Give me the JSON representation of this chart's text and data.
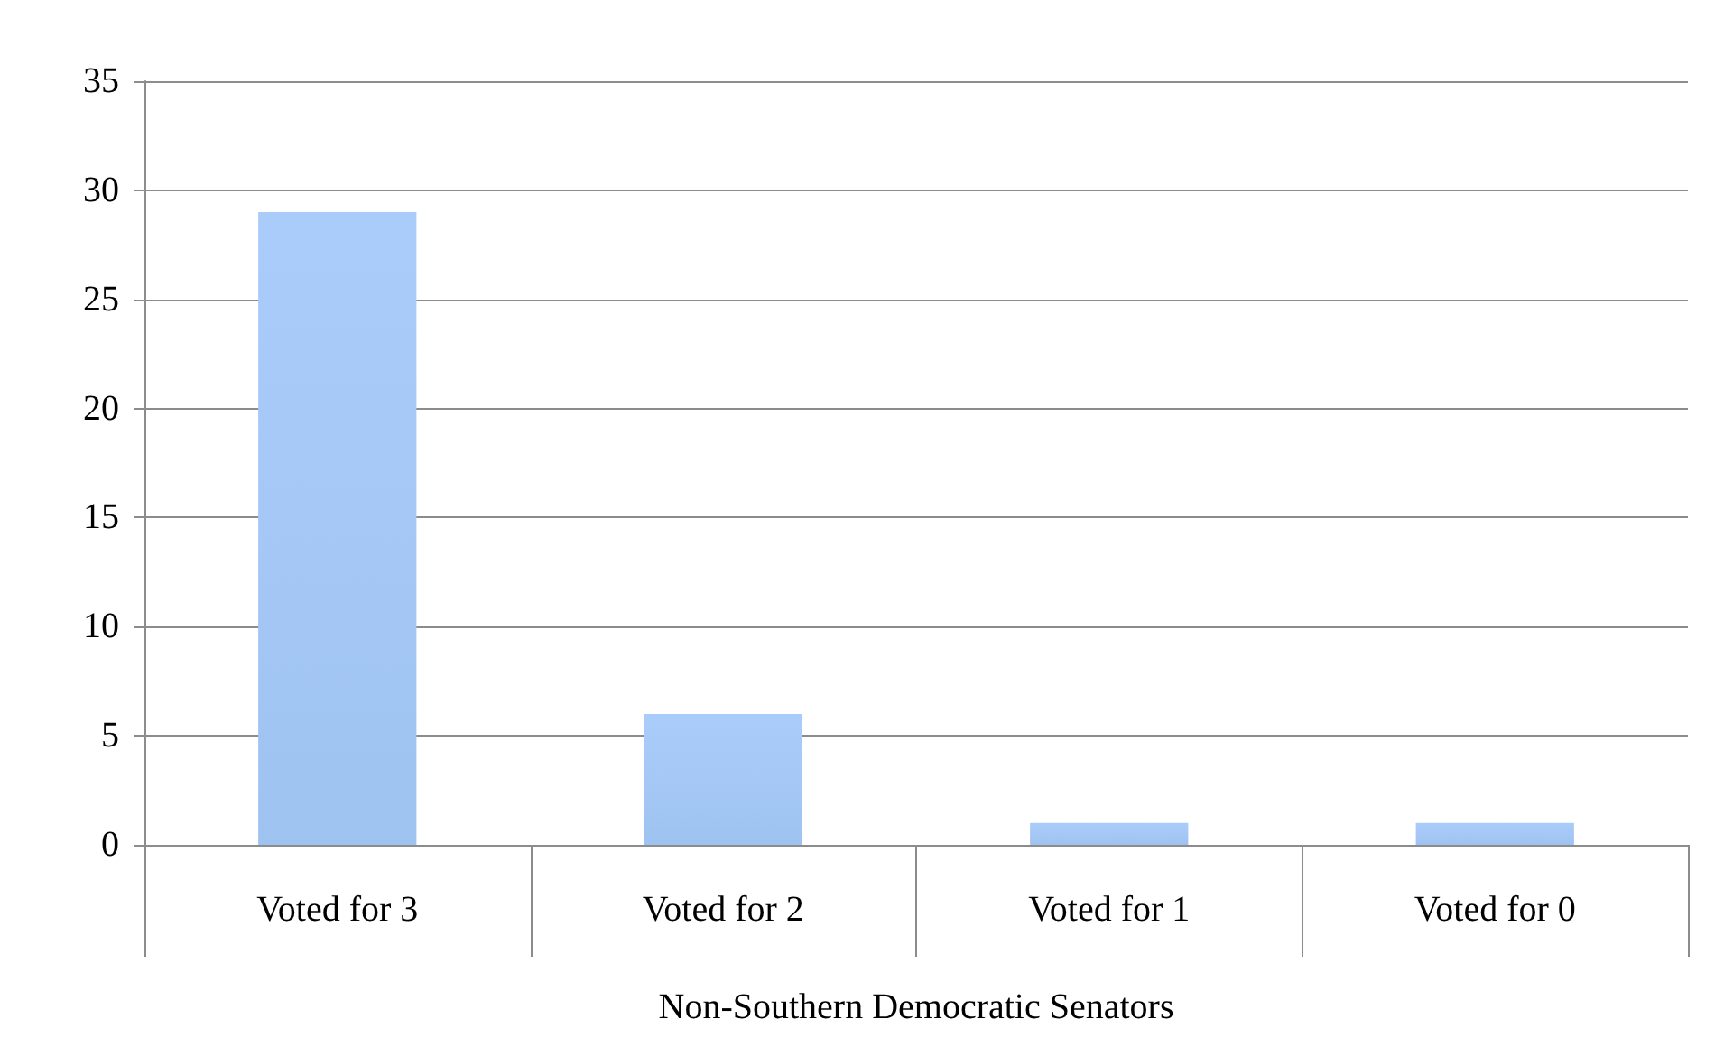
{
  "chart_data": {
    "type": "bar",
    "xlabel": "Non-Southern Democratic Senators",
    "categories": [
      "Voted for 3",
      "Voted for 2",
      "Voted for 1",
      "Voted for 0"
    ],
    "values": [
      29,
      6,
      1,
      1
    ],
    "color": "#7fb0ec",
    "ylim": [
      0,
      35
    ],
    "yticks": [
      0,
      5,
      10,
      15,
      20,
      25,
      30,
      35
    ],
    "grid": "y"
  }
}
